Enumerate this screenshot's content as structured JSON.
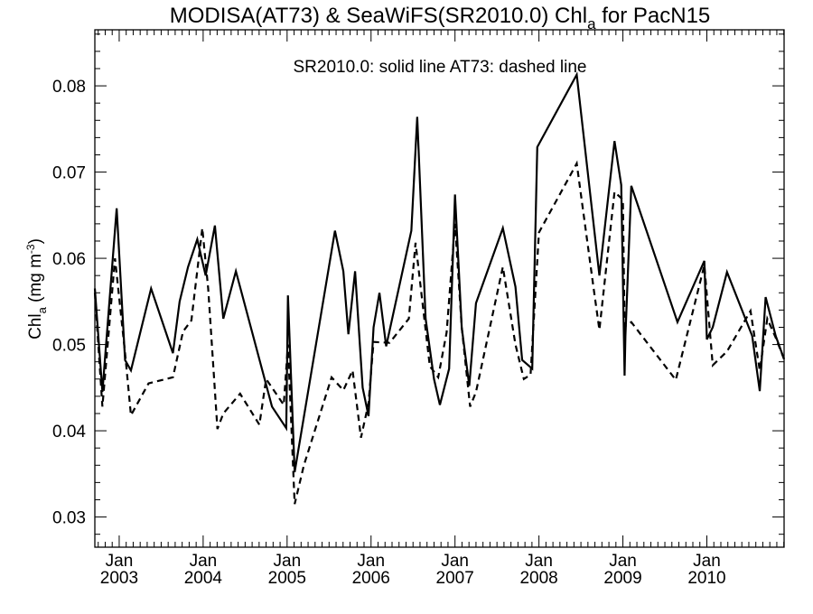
{
  "chart_data": {
    "type": "line",
    "title_main": "MODISA(AT73) & SeaWiFS(SR2010.0)  Chl",
    "title_sub": "a",
    "title_tail": " for PacN15",
    "annotation": "SR2010.0: solid line   AT73: dashed line",
    "ylabel_main": "Chl",
    "ylabel_sub": "a",
    "ylabel_unit": " (mg m",
    "ylabel_sup": "-3",
    "ylabel_close": ")",
    "ylim": [
      0.0265,
      0.0865
    ],
    "xlim": [
      2002.71,
      2010.92
    ],
    "grid": false,
    "yticks": [
      0.03,
      0.04,
      0.05,
      0.06,
      0.07,
      0.08
    ],
    "ytick_labels": [
      "0.03",
      "0.04",
      "0.05",
      "0.06",
      "0.07",
      "0.08"
    ],
    "xticks": [
      {
        "x": 2003.0,
        "month": "Jan",
        "year": "2003"
      },
      {
        "x": 2004.0,
        "month": "Jan",
        "year": "2004"
      },
      {
        "x": 2005.0,
        "month": "Jan",
        "year": "2005"
      },
      {
        "x": 2006.0,
        "month": "Jan",
        "year": "2006"
      },
      {
        "x": 2007.0,
        "month": "Jan",
        "year": "2007"
      },
      {
        "x": 2008.0,
        "month": "Jan",
        "year": "2008"
      },
      {
        "x": 2009.0,
        "month": "Jan",
        "year": "2009"
      },
      {
        "x": 2010.0,
        "month": "Jan",
        "year": "2010"
      }
    ],
    "series": [
      {
        "name": "SR2010.0",
        "style": "solid",
        "color": "#000000",
        "points": [
          [
            2002.71,
            0.0565
          ],
          [
            2002.8,
            0.0445
          ],
          [
            2002.97,
            0.0658
          ],
          [
            2003.07,
            0.0482
          ],
          [
            2003.14,
            0.047
          ],
          [
            2003.38,
            0.0565
          ],
          [
            2003.64,
            0.049
          ],
          [
            2003.72,
            0.055
          ],
          [
            2003.82,
            0.059
          ],
          [
            2003.93,
            0.0622
          ],
          [
            2004.03,
            0.058
          ],
          [
            2004.14,
            0.0638
          ],
          [
            2004.24,
            0.053
          ],
          [
            2004.39,
            0.0585
          ],
          [
            2004.82,
            0.0428
          ],
          [
            2004.99,
            0.0403
          ],
          [
            2005.01,
            0.0557
          ],
          [
            2005.09,
            0.0352
          ],
          [
            2005.57,
            0.0632
          ],
          [
            2005.67,
            0.0585
          ],
          [
            2005.73,
            0.0512
          ],
          [
            2005.81,
            0.0585
          ],
          [
            2005.9,
            0.045
          ],
          [
            2005.97,
            0.0417
          ],
          [
            2006.03,
            0.052
          ],
          [
            2006.1,
            0.056
          ],
          [
            2006.18,
            0.0498
          ],
          [
            2006.48,
            0.0632
          ],
          [
            2006.55,
            0.0764
          ],
          [
            2006.65,
            0.053
          ],
          [
            2006.75,
            0.046
          ],
          [
            2006.82,
            0.043
          ],
          [
            2006.93,
            0.0472
          ],
          [
            2007.0,
            0.0674
          ],
          [
            2007.08,
            0.052
          ],
          [
            2007.17,
            0.0452
          ],
          [
            2007.25,
            0.0548
          ],
          [
            2007.57,
            0.0635
          ],
          [
            2007.72,
            0.0567
          ],
          [
            2007.8,
            0.0482
          ],
          [
            2007.92,
            0.0472
          ],
          [
            2007.98,
            0.0729
          ],
          [
            2008.45,
            0.0813
          ],
          [
            2008.72,
            0.058
          ],
          [
            2008.9,
            0.0736
          ],
          [
            2008.98,
            0.0685
          ],
          [
            2009.02,
            0.0464
          ],
          [
            2009.03,
            0.051
          ],
          [
            2009.1,
            0.0684
          ],
          [
            2009.65,
            0.0526
          ],
          [
            2009.97,
            0.0597
          ],
          [
            2010.0,
            0.0506
          ],
          [
            2010.07,
            0.052
          ],
          [
            2010.24,
            0.0584
          ],
          [
            2010.54,
            0.051
          ],
          [
            2010.63,
            0.0446
          ],
          [
            2010.7,
            0.0555
          ],
          [
            2010.82,
            0.051
          ],
          [
            2010.92,
            0.0483
          ]
        ]
      },
      {
        "name": "AT73",
        "style": "dashed",
        "color": "#000000",
        "points": [
          [
            2002.71,
            0.056
          ],
          [
            2002.8,
            0.0428
          ],
          [
            2002.95,
            0.06
          ],
          [
            2003.07,
            0.049
          ],
          [
            2003.14,
            0.0418
          ],
          [
            2003.35,
            0.0455
          ],
          [
            2003.64,
            0.0462
          ],
          [
            2003.76,
            0.0515
          ],
          [
            2003.86,
            0.0528
          ],
          [
            2003.99,
            0.0635
          ],
          [
            2004.06,
            0.0565
          ],
          [
            2004.17,
            0.0402
          ],
          [
            2004.24,
            0.042
          ],
          [
            2004.44,
            0.0443
          ],
          [
            2004.67,
            0.0407
          ],
          [
            2004.75,
            0.046
          ],
          [
            2004.96,
            0.043
          ],
          [
            2005.01,
            0.05
          ],
          [
            2005.09,
            0.0315
          ],
          [
            2005.2,
            0.036
          ],
          [
            2005.53,
            0.0462
          ],
          [
            2005.67,
            0.0447
          ],
          [
            2005.78,
            0.047
          ],
          [
            2005.88,
            0.0392
          ],
          [
            2005.97,
            0.0432
          ],
          [
            2006.03,
            0.0503
          ],
          [
            2006.22,
            0.0502
          ],
          [
            2006.45,
            0.053
          ],
          [
            2006.53,
            0.0618
          ],
          [
            2006.7,
            0.0475
          ],
          [
            2006.8,
            0.0462
          ],
          [
            2006.9,
            0.0514
          ],
          [
            2007.0,
            0.064
          ],
          [
            2007.08,
            0.052
          ],
          [
            2007.18,
            0.0428
          ],
          [
            2007.25,
            0.0445
          ],
          [
            2007.57,
            0.059
          ],
          [
            2007.72,
            0.05
          ],
          [
            2007.82,
            0.046
          ],
          [
            2007.9,
            0.0465
          ],
          [
            2008.0,
            0.063
          ],
          [
            2008.45,
            0.071
          ],
          [
            2008.65,
            0.0566
          ],
          [
            2008.72,
            0.0517
          ],
          [
            2008.9,
            0.0677
          ],
          [
            2009.0,
            0.0668
          ],
          [
            2009.02,
            0.0521
          ],
          [
            2009.1,
            0.0526
          ],
          [
            2009.63,
            0.0459
          ],
          [
            2009.97,
            0.0592
          ],
          [
            2010.07,
            0.0476
          ],
          [
            2010.24,
            0.0492
          ],
          [
            2010.52,
            0.0539
          ],
          [
            2010.63,
            0.047
          ],
          [
            2010.72,
            0.053
          ],
          [
            2010.82,
            0.0508
          ],
          [
            2010.92,
            0.0483
          ]
        ]
      }
    ]
  }
}
